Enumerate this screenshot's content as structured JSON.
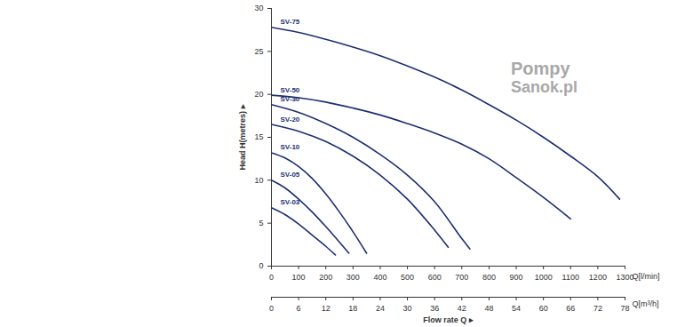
{
  "chart_data": {
    "type": "line",
    "y_label": "Head H(metres) ▸",
    "x_label": "Q[l/min]",
    "x2_label": "Q[m³/h]",
    "x_title": "Flow rate Q ▸",
    "xlim": [
      0,
      1300
    ],
    "xticks": [
      0,
      100,
      200,
      300,
      400,
      500,
      600,
      700,
      800,
      900,
      1000,
      1100,
      1200,
      1300
    ],
    "x2lim": [
      0,
      78
    ],
    "x2ticks": [
      0,
      6,
      12,
      18,
      24,
      30,
      36,
      42,
      48,
      54,
      60,
      66,
      72,
      78
    ],
    "ylim": [
      0,
      30
    ],
    "yticks": [
      0,
      5,
      10,
      15,
      20,
      25,
      30
    ],
    "grid": false,
    "series": [
      {
        "name": "SV-75",
        "color": "#1b2f72",
        "x": [
          0,
          100,
          200,
          300,
          400,
          500,
          600,
          700,
          800,
          900,
          1000,
          1100,
          1200,
          1280
        ],
        "values": [
          27.8,
          27.2,
          26.4,
          25.5,
          24.5,
          23.3,
          22.0,
          20.5,
          18.8,
          17.0,
          15.0,
          12.8,
          10.4,
          7.8
        ]
      },
      {
        "name": "SV-50",
        "color": "#1b2f72",
        "x": [
          0,
          100,
          200,
          300,
          400,
          500,
          600,
          700,
          800,
          900,
          1000,
          1100
        ],
        "values": [
          19.9,
          19.6,
          19.1,
          18.4,
          17.6,
          16.6,
          15.5,
          14.2,
          12.5,
          10.3,
          8.0,
          5.5
        ]
      },
      {
        "name": "SV-30",
        "color": "#1b2f72",
        "x": [
          0,
          100,
          200,
          300,
          400,
          500,
          600,
          700,
          730
        ],
        "values": [
          18.8,
          17.9,
          16.6,
          15.0,
          13.0,
          10.6,
          7.5,
          3.2,
          2.0
        ]
      },
      {
        "name": "SV-20",
        "color": "#1b2f72",
        "x": [
          0,
          100,
          200,
          300,
          400,
          500,
          600,
          650
        ],
        "values": [
          16.5,
          15.7,
          14.5,
          12.8,
          10.6,
          7.8,
          4.2,
          2.2
        ]
      },
      {
        "name": "SV-10",
        "color": "#1b2f72",
        "x": [
          0,
          50,
          100,
          150,
          200,
          250,
          300,
          350
        ],
        "values": [
          13.2,
          12.6,
          11.6,
          10.2,
          8.4,
          6.3,
          4.0,
          1.5
        ]
      },
      {
        "name": "SV-05",
        "color": "#1b2f72",
        "x": [
          0,
          50,
          100,
          150,
          200,
          250,
          285
        ],
        "values": [
          10.0,
          9.1,
          7.8,
          6.3,
          4.6,
          2.8,
          1.5
        ]
      },
      {
        "name": "SV-03",
        "color": "#1b2f72",
        "x": [
          0,
          50,
          100,
          150,
          200,
          235
        ],
        "values": [
          6.8,
          6.0,
          4.9,
          3.6,
          2.3,
          1.3
        ]
      }
    ],
    "annotations": [
      {
        "text": "Pompy",
        "x": 880,
        "y": 23
      },
      {
        "text": "Sanok.pl",
        "x": 880,
        "y": 20.8
      }
    ]
  }
}
